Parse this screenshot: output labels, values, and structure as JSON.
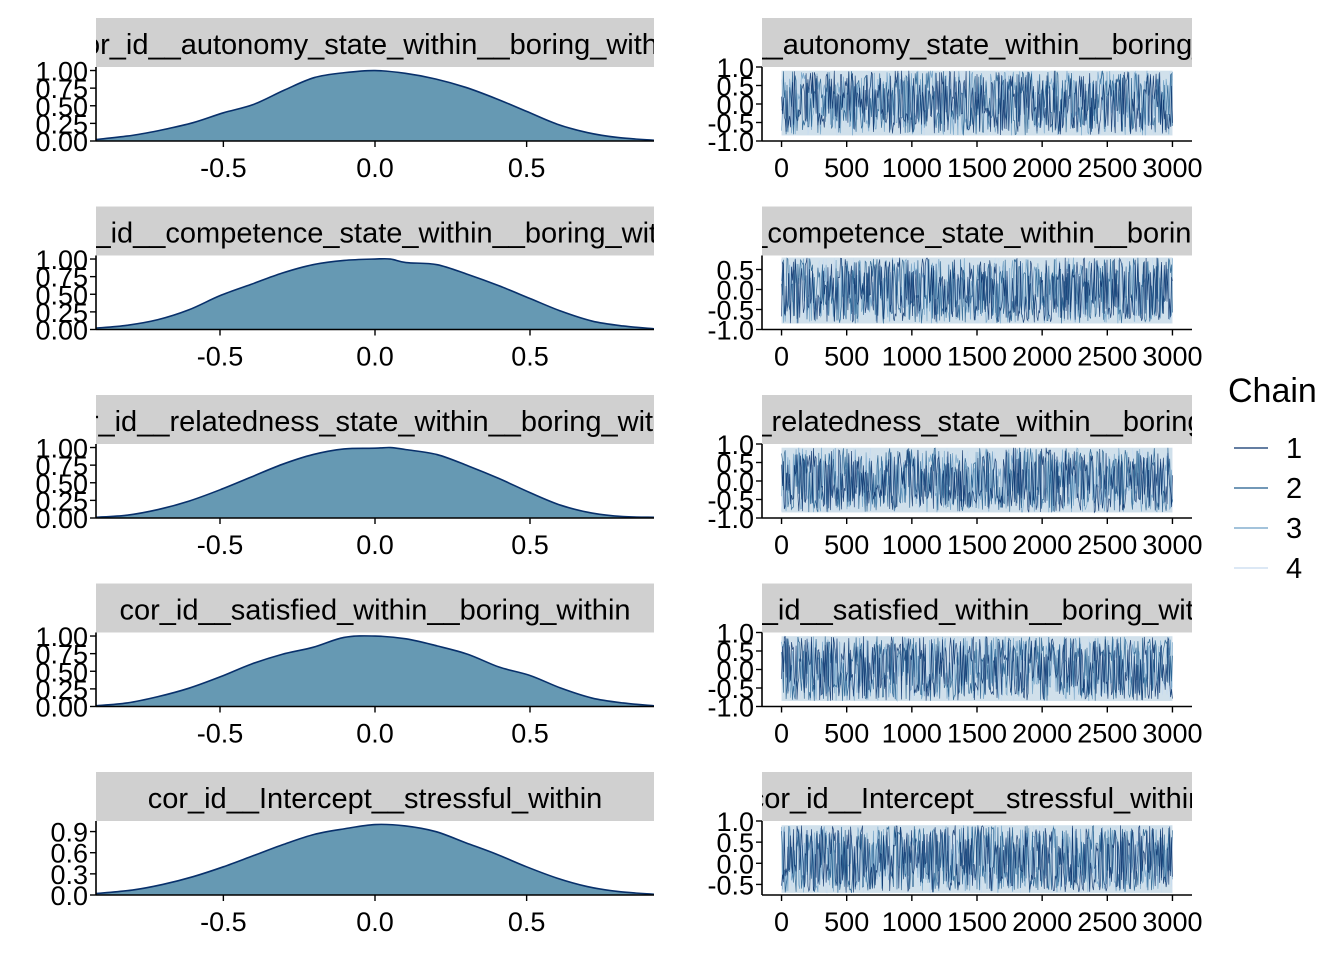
{
  "colors": {
    "strip_bg": "#d0d0d0",
    "density_fill": "#6699b3",
    "density_line": "#08306b",
    "trace_colors": [
      "#08306b",
      "#1f5a8c",
      "#6c9fc5",
      "#c6dbef"
    ],
    "trace_band": "#d0e0eb"
  },
  "legend": {
    "title": "Chain",
    "entries": [
      "1",
      "2",
      "3",
      "4"
    ]
  },
  "chart_data": [
    {
      "type": "area",
      "title": "cor_id__autonomy_state_within__boring_within",
      "xlim": [
        -0.92,
        0.92
      ],
      "ylim": [
        0,
        1.05
      ],
      "xticks": [
        -0.5,
        0.0,
        0.5
      ],
      "xtick_labels": [
        "-0.5",
        "0.0",
        "0.5"
      ],
      "yticks": [
        0,
        0.25,
        0.5,
        0.75,
        1.0
      ],
      "ytick_labels": [
        "0.00",
        "0.25",
        "0.50",
        "0.75",
        "1.00"
      ],
      "x": [
        -0.92,
        -0.8,
        -0.7,
        -0.6,
        -0.5,
        -0.4,
        -0.3,
        -0.2,
        -0.1,
        0.0,
        0.1,
        0.2,
        0.3,
        0.4,
        0.5,
        0.6,
        0.7,
        0.8,
        0.92
      ],
      "y": [
        0.02,
        0.08,
        0.16,
        0.26,
        0.4,
        0.52,
        0.72,
        0.9,
        0.97,
        1.0,
        0.96,
        0.88,
        0.76,
        0.6,
        0.42,
        0.24,
        0.12,
        0.05,
        0.01
      ]
    },
    {
      "type": "line",
      "title": "cor_id__autonomy_state_within__boring_within",
      "xlim": [
        -150,
        3150
      ],
      "ylim": [
        -1.0,
        1.0
      ],
      "xticks": [
        0,
        500,
        1000,
        1500,
        2000,
        2500,
        3000
      ],
      "xtick_labels": [
        "0",
        "500",
        "1000",
        "1500",
        "2000",
        "2500",
        "3000"
      ],
      "yticks": [
        -1.0,
        -0.5,
        0.0,
        0.5,
        1.0
      ],
      "ytick_labels": [
        "-1.0",
        "-0.5",
        "0.0",
        "0.5",
        "1.0"
      ],
      "iterations": 3000,
      "trace_range": [
        -0.85,
        0.9
      ],
      "chains": 4
    },
    {
      "type": "area",
      "title": "cor_id__competence_state_within__boring_within",
      "xlim": [
        -0.9,
        0.9
      ],
      "ylim": [
        0,
        1.05
      ],
      "xticks": [
        -0.5,
        0.0,
        0.5
      ],
      "xtick_labels": [
        "-0.5",
        "0.0",
        "0.5"
      ],
      "yticks": [
        0,
        0.25,
        0.5,
        0.75,
        1.0
      ],
      "ytick_labels": [
        "0.00",
        "0.25",
        "0.50",
        "0.75",
        "1.00"
      ],
      "x": [
        -0.9,
        -0.8,
        -0.7,
        -0.6,
        -0.5,
        -0.4,
        -0.3,
        -0.2,
        -0.1,
        0.0,
        0.05,
        0.1,
        0.2,
        0.3,
        0.4,
        0.5,
        0.6,
        0.7,
        0.8,
        0.9
      ],
      "y": [
        0.02,
        0.06,
        0.14,
        0.28,
        0.48,
        0.64,
        0.8,
        0.92,
        0.98,
        1.0,
        1.0,
        0.95,
        0.92,
        0.78,
        0.62,
        0.44,
        0.26,
        0.12,
        0.05,
        0.01
      ]
    },
    {
      "type": "line",
      "title": "cor_id__competence_state_within__boring_within",
      "xlim": [
        -150,
        3150
      ],
      "ylim": [
        -1.0,
        0.85
      ],
      "xticks": [
        0,
        500,
        1000,
        1500,
        2000,
        2500,
        3000
      ],
      "xtick_labels": [
        "0",
        "500",
        "1000",
        "1500",
        "2000",
        "2500",
        "3000"
      ],
      "yticks": [
        -1.0,
        -0.5,
        0.0,
        0.5
      ],
      "ytick_labels": [
        "-1.0",
        "-0.5",
        "0.0",
        "0.5"
      ],
      "iterations": 3000,
      "trace_range": [
        -0.85,
        0.8
      ],
      "chains": 4
    },
    {
      "type": "area",
      "title": "cor_id__relatedness_state_within__boring_within",
      "xlim": [
        -0.9,
        0.9
      ],
      "ylim": [
        0,
        1.05
      ],
      "xticks": [
        -0.5,
        0.0,
        0.5
      ],
      "xtick_labels": [
        "-0.5",
        "0.0",
        "0.5"
      ],
      "yticks": [
        0,
        0.25,
        0.5,
        0.75,
        1.0
      ],
      "ytick_labels": [
        "0.00",
        "0.25",
        "0.50",
        "0.75",
        "1.00"
      ],
      "x": [
        -0.9,
        -0.8,
        -0.7,
        -0.6,
        -0.5,
        -0.4,
        -0.3,
        -0.2,
        -0.1,
        0.0,
        0.05,
        0.1,
        0.2,
        0.3,
        0.4,
        0.5,
        0.6,
        0.7,
        0.8,
        0.9
      ],
      "y": [
        0.01,
        0.04,
        0.12,
        0.24,
        0.4,
        0.58,
        0.76,
        0.9,
        0.98,
        0.99,
        1.0,
        0.97,
        0.9,
        0.74,
        0.56,
        0.36,
        0.18,
        0.07,
        0.02,
        0.01
      ]
    },
    {
      "type": "line",
      "title": "cor_id__relatedness_state_within__boring_within",
      "xlim": [
        -150,
        3150
      ],
      "ylim": [
        -1.0,
        1.0
      ],
      "xticks": [
        0,
        500,
        1000,
        1500,
        2000,
        2500,
        3000
      ],
      "xtick_labels": [
        "0",
        "500",
        "1000",
        "1500",
        "2000",
        "2500",
        "3000"
      ],
      "yticks": [
        -1.0,
        -0.5,
        0.0,
        0.5,
        1.0
      ],
      "ytick_labels": [
        "-1.0",
        "-0.5",
        "0.0",
        "0.5",
        "1.0"
      ],
      "iterations": 3000,
      "trace_range": [
        -0.85,
        0.9
      ],
      "chains": 4
    },
    {
      "type": "area",
      "title": "cor_id__satisfied_within__boring_within",
      "xlim": [
        -0.9,
        0.9
      ],
      "ylim": [
        0,
        1.05
      ],
      "xticks": [
        -0.5,
        0.0,
        0.5
      ],
      "xtick_labels": [
        "-0.5",
        "0.0",
        "0.5"
      ],
      "yticks": [
        0,
        0.25,
        0.5,
        0.75,
        1.0
      ],
      "ytick_labels": [
        "0.00",
        "0.25",
        "0.50",
        "0.75",
        "1.00"
      ],
      "x": [
        -0.9,
        -0.8,
        -0.7,
        -0.6,
        -0.5,
        -0.4,
        -0.3,
        -0.2,
        -0.1,
        0.0,
        0.1,
        0.2,
        0.3,
        0.4,
        0.5,
        0.6,
        0.7,
        0.8,
        0.9
      ],
      "y": [
        0.01,
        0.05,
        0.14,
        0.26,
        0.42,
        0.6,
        0.74,
        0.84,
        0.98,
        1.0,
        0.96,
        0.86,
        0.74,
        0.56,
        0.44,
        0.26,
        0.12,
        0.05,
        0.01
      ]
    },
    {
      "type": "line",
      "title": "cor_id__satisfied_within__boring_within",
      "xlim": [
        -150,
        3150
      ],
      "ylim": [
        -1.0,
        1.0
      ],
      "xticks": [
        0,
        500,
        1000,
        1500,
        2000,
        2500,
        3000
      ],
      "xtick_labels": [
        "0",
        "500",
        "1000",
        "1500",
        "2000",
        "2500",
        "3000"
      ],
      "yticks": [
        -1.0,
        -0.5,
        0.0,
        0.5,
        1.0
      ],
      "ytick_labels": [
        "-1.0",
        "-0.5",
        "0.0",
        "0.5",
        "1.0"
      ],
      "iterations": 3000,
      "trace_range": [
        -0.85,
        0.9
      ],
      "chains": 4
    },
    {
      "type": "area",
      "title": "cor_id__Intercept__stressful_within",
      "xlim": [
        -0.92,
        0.92
      ],
      "ylim": [
        0,
        1.05
      ],
      "xticks": [
        -0.5,
        0.0,
        0.5
      ],
      "xtick_labels": [
        "-0.5",
        "0.0",
        "0.5"
      ],
      "yticks": [
        0,
        0.3,
        0.6,
        0.9
      ],
      "ytick_labels": [
        "0.0",
        "0.3",
        "0.6",
        "0.9"
      ],
      "x": [
        -0.92,
        -0.8,
        -0.7,
        -0.6,
        -0.5,
        -0.4,
        -0.3,
        -0.2,
        -0.1,
        0.0,
        0.1,
        0.2,
        0.3,
        0.4,
        0.5,
        0.6,
        0.7,
        0.8,
        0.92
      ],
      "y": [
        0.02,
        0.07,
        0.15,
        0.26,
        0.4,
        0.56,
        0.72,
        0.86,
        0.94,
        1.0,
        0.98,
        0.9,
        0.74,
        0.58,
        0.4,
        0.24,
        0.12,
        0.05,
        0.01
      ]
    },
    {
      "type": "line",
      "title": "cor_id__Intercept__stressful_within",
      "xlim": [
        -150,
        3150
      ],
      "ylim": [
        -0.75,
        1.0
      ],
      "xticks": [
        0,
        500,
        1000,
        1500,
        2000,
        2500,
        3000
      ],
      "xtick_labels": [
        "0",
        "500",
        "1000",
        "1500",
        "2000",
        "2500",
        "3000"
      ],
      "yticks": [
        -0.5,
        0.0,
        0.5,
        1.0
      ],
      "ytick_labels": [
        "-0.5",
        "0.0",
        "0.5",
        "1.0"
      ],
      "iterations": 3000,
      "trace_range": [
        -0.7,
        0.9
      ],
      "chains": 4
    }
  ]
}
